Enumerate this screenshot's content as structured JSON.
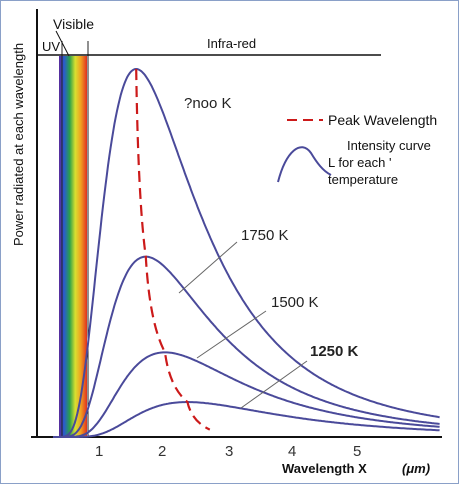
{
  "chart_data": {
    "type": "line",
    "xlabel": "Wavelength X",
    "xunit": "(μm)",
    "ylabel": "Power radiated at each wavelength",
    "x_ticks": [
      "1",
      "2",
      "3",
      "4",
      "5"
    ],
    "xlim": [
      0,
      6.3
    ],
    "ylim": [
      0,
      100
    ],
    "regions": {
      "uv": "UV",
      "visible": "Visible",
      "infrared": "Infra-red"
    },
    "series": [
      {
        "name": "?noo K",
        "peak_x": 1.55,
        "peak_y": 100,
        "color": "#4a4a9a"
      },
      {
        "name": "1750 K",
        "peak_x": 1.7,
        "peak_y": 49,
        "color": "#4a4a9a"
      },
      {
        "name": "1500 K",
        "peak_x": 2.0,
        "peak_y": 23,
        "color": "#4a4a9a"
      },
      {
        "name": "1250 K",
        "peak_x": 2.35,
        "peak_y": 9.5,
        "color": "#4a4a9a"
      }
    ],
    "peak_wavelength_line": {
      "name": "Peak Wavelength",
      "color": "#cc1a1a",
      "points": [
        [
          1.55,
          100
        ],
        [
          1.7,
          49
        ],
        [
          2.0,
          23
        ],
        [
          2.35,
          9.5
        ],
        [
          2.7,
          2
        ]
      ]
    },
    "legend": {
      "peak": "Peak Wavelength",
      "intensity_line1": "Intensity curve",
      "intensity_line2": "L for each '",
      "intensity_line3": "temperature"
    },
    "legend_position": "top-right",
    "curve_color": "#4a4a9a",
    "axis_color": "#111111"
  }
}
